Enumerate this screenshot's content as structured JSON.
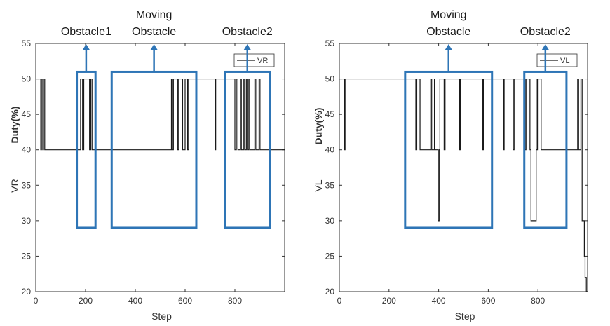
{
  "chart_data": [
    {
      "type": "line",
      "xlabel": "Step",
      "ylabel_prefix": "VR",
      "ylabel": "Duty(%)",
      "xlim": [
        0,
        1000
      ],
      "ylim": [
        20,
        55
      ],
      "xticks": [
        0,
        200,
        400,
        600,
        800
      ],
      "yticks": [
        20,
        25,
        30,
        35,
        40,
        45,
        50,
        55
      ],
      "legend": {
        "label": "VR",
        "placement": "top-right"
      },
      "series": [
        {
          "name": "VR",
          "x": [
            0,
            20,
            20,
            23,
            23,
            28,
            28,
            31,
            31,
            36,
            36,
            180,
            180,
            188,
            188,
            193,
            193,
            216,
            216,
            221,
            221,
            226,
            226,
            545,
            545,
            549,
            549,
            553,
            553,
            570,
            570,
            574,
            574,
            590,
            590,
            600,
            600,
            610,
            610,
            614,
            614,
            720,
            720,
            723,
            723,
            800,
            800,
            806,
            806,
            812,
            812,
            822,
            822,
            826,
            826,
            836,
            836,
            840,
            840,
            846,
            846,
            850,
            850,
            856,
            856,
            860,
            860,
            880,
            880,
            884,
            884,
            897,
            897,
            901,
            901,
            1000
          ],
          "y": [
            50,
            50,
            40,
            40,
            50,
            50,
            40,
            40,
            50,
            50,
            40,
            40,
            50,
            50,
            40,
            40,
            50,
            50,
            40,
            40,
            50,
            50,
            40,
            40,
            50,
            50,
            40,
            40,
            50,
            50,
            40,
            40,
            50,
            50,
            40,
            40,
            50,
            50,
            40,
            40,
            50,
            50,
            40,
            40,
            50,
            50,
            40,
            40,
            50,
            50,
            40,
            40,
            50,
            50,
            40,
            40,
            50,
            50,
            40,
            40,
            50,
            50,
            40,
            40,
            50,
            50,
            40,
            40,
            50,
            50,
            40,
            40,
            50,
            50,
            40,
            40
          ]
        }
      ],
      "annotations": [
        {
          "label": "Obstacle1",
          "x_range": [
            165,
            240
          ],
          "y_range": [
            29,
            51
          ]
        },
        {
          "label": "Moving\nObstacle",
          "x_range": [
            305,
            645
          ],
          "y_range": [
            29,
            51
          ]
        },
        {
          "label": "Obstacle2",
          "x_range": [
            760,
            940
          ],
          "y_range": [
            29,
            51
          ]
        }
      ]
    },
    {
      "type": "line",
      "xlabel": "Step",
      "ylabel_prefix": "VL",
      "ylabel": "Duty(%)",
      "xlim": [
        0,
        1000
      ],
      "ylim": [
        20,
        55
      ],
      "xticks": [
        0,
        200,
        400,
        600,
        800
      ],
      "yticks": [
        20,
        25,
        30,
        35,
        40,
        45,
        50,
        55
      ],
      "legend": {
        "label": "VL",
        "placement": "top-right"
      },
      "series": [
        {
          "name": "VL",
          "x": [
            0,
            20,
            20,
            23,
            23,
            308,
            308,
            312,
            312,
            325,
            325,
            368,
            368,
            372,
            372,
            383,
            383,
            385,
            385,
            398,
            398,
            402,
            402,
            405,
            405,
            422,
            422,
            426,
            426,
            484,
            484,
            487,
            487,
            578,
            578,
            581,
            581,
            661,
            661,
            664,
            664,
            700,
            700,
            704,
            704,
            748,
            748,
            752,
            752,
            768,
            768,
            772,
            772,
            793,
            793,
            797,
            797,
            798,
            798,
            801,
            801,
            813,
            813,
            960,
            960,
            964,
            964,
            973,
            973,
            978,
            978,
            987,
            987,
            990,
            990,
            995,
            995,
            1000
          ],
          "y": [
            50,
            50,
            40,
            40,
            50,
            50,
            40,
            40,
            50,
            50,
            40,
            40,
            50,
            50,
            40,
            40,
            50,
            50,
            40,
            40,
            30,
            30,
            40,
            40,
            50,
            50,
            40,
            40,
            50,
            50,
            40,
            40,
            50,
            50,
            40,
            40,
            50,
            50,
            40,
            40,
            50,
            50,
            40,
            40,
            50,
            50,
            40,
            40,
            50,
            50,
            40,
            40,
            30,
            30,
            40,
            40,
            50,
            50,
            40,
            40,
            50,
            50,
            40,
            40,
            50,
            50,
            40,
            40,
            50,
            50,
            30,
            30,
            25,
            25,
            22,
            22,
            20,
            20
          ]
        }
      ],
      "annotations": [
        {
          "label": "Moving\nObstacle",
          "x_range": [
            265,
            615
          ],
          "y_range": [
            29,
            51
          ]
        },
        {
          "label": "Obstacle2",
          "x_range": [
            745,
            915
          ],
          "y_range": [
            29,
            51
          ]
        }
      ]
    }
  ],
  "colors": {
    "line": "#1a1a1a",
    "annotation": "#2e75b6",
    "axis": "#333333",
    "background": "#ffffff"
  }
}
